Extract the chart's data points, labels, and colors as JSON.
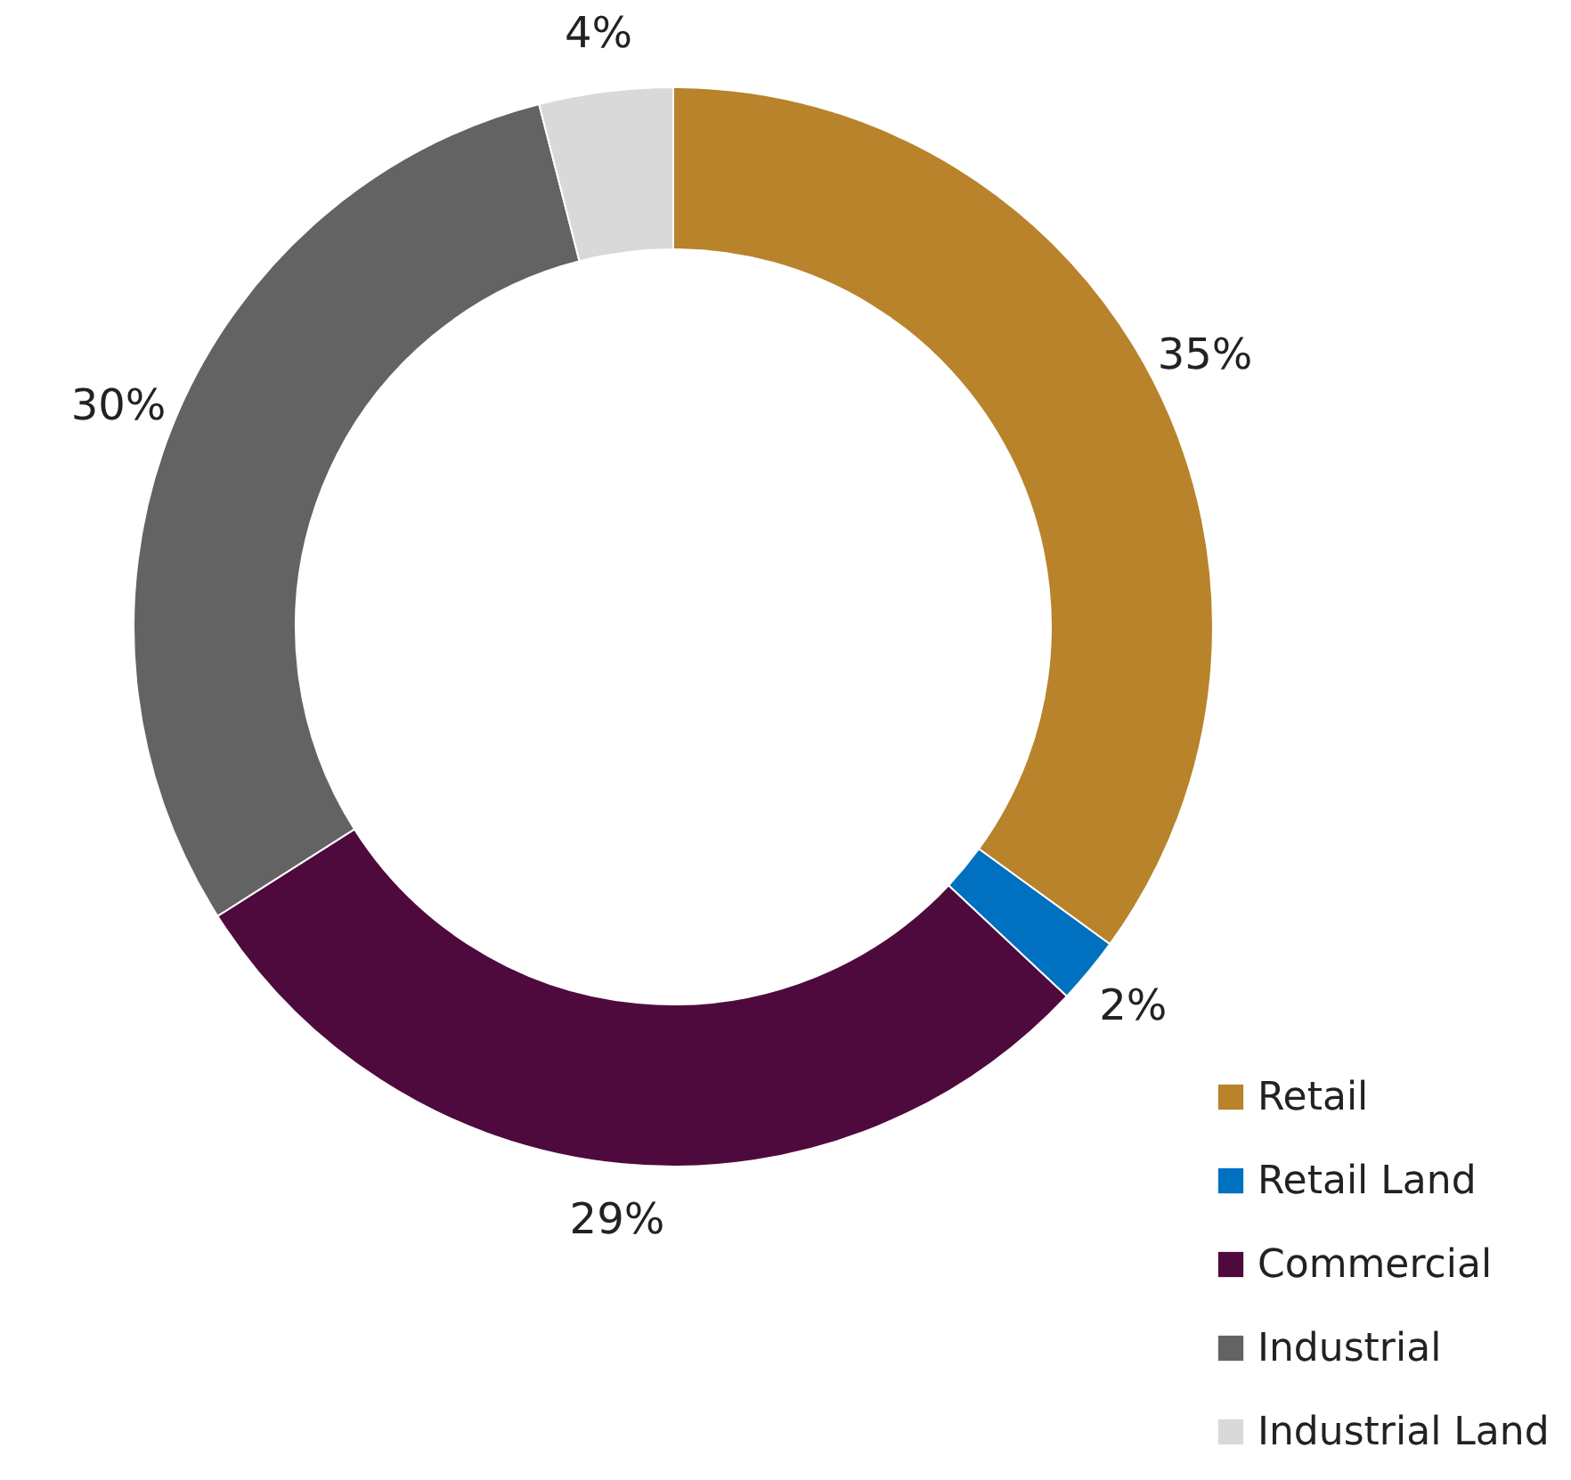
{
  "chart_data": {
    "type": "donut",
    "categories": [
      "Retail",
      "Retail Land",
      "Commercial",
      "Industrial",
      "Industrial Land"
    ],
    "values": [
      35,
      2,
      29,
      30,
      4
    ],
    "value_labels": [
      "35%",
      "2%",
      "29%",
      "30%",
      "4%"
    ],
    "colors": [
      "#b8832a",
      "#0070c0",
      "#4f0a3d",
      "#636363",
      "#d9d9d9"
    ],
    "legend": "bottom right"
  }
}
